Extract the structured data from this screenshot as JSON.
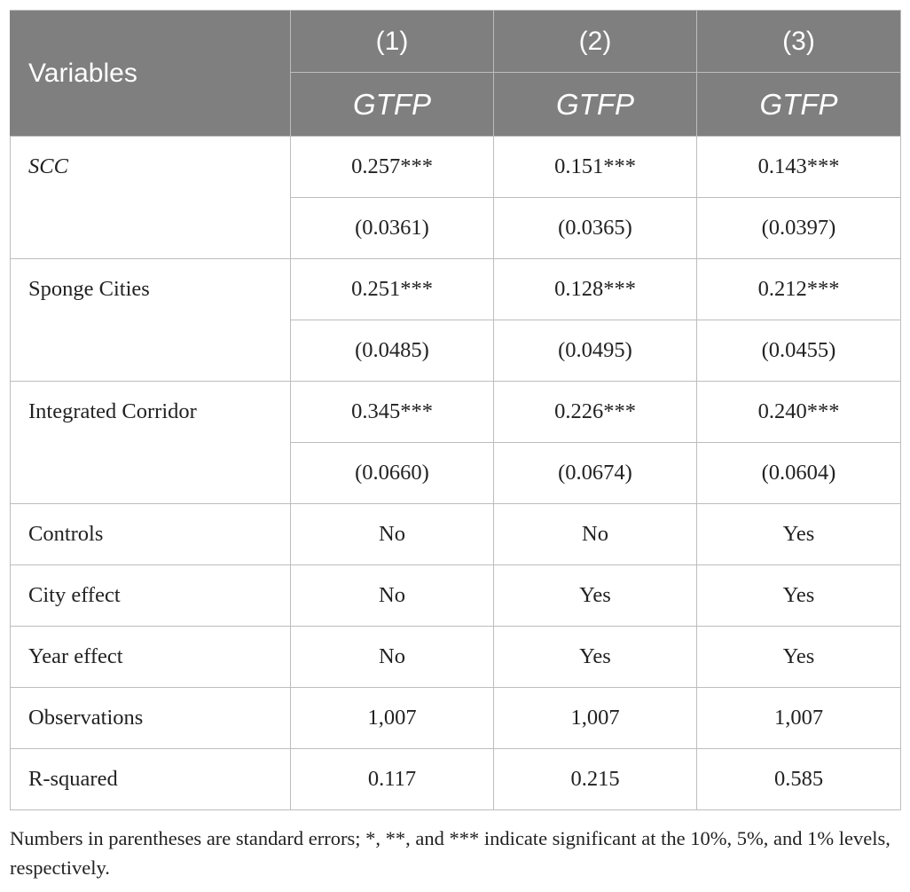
{
  "header": {
    "variables_label": "Variables",
    "columns": [
      {
        "number": "(1)",
        "dep_var": "GTFP"
      },
      {
        "number": "(2)",
        "dep_var": "GTFP"
      },
      {
        "number": "(3)",
        "dep_var": "GTFP"
      }
    ]
  },
  "coef_rows": [
    {
      "label": "SCC",
      "coefs": [
        "0.257***",
        "0.151***",
        "0.143***"
      ],
      "ses": [
        "(0.0361)",
        "(0.0365)",
        "(0.0397)"
      ]
    },
    {
      "label": "Sponge Cities",
      "coefs": [
        "0.251***",
        "0.128***",
        "0.212***"
      ],
      "ses": [
        "(0.0485)",
        "(0.0495)",
        "(0.0455)"
      ]
    },
    {
      "label": "Integrated Corridor",
      "coefs": [
        "0.345***",
        "0.226***",
        "0.240***"
      ],
      "ses": [
        "(0.0660)",
        "(0.0674)",
        "(0.0604)"
      ]
    }
  ],
  "stat_rows": [
    {
      "label": "Controls",
      "values": [
        "No",
        "No",
        "Yes"
      ]
    },
    {
      "label": "City effect",
      "values": [
        "No",
        "Yes",
        "Yes"
      ]
    },
    {
      "label": "Year effect",
      "values": [
        "No",
        "Yes",
        "Yes"
      ]
    },
    {
      "label": "Observations",
      "values": [
        "1,007",
        "1,007",
        "1,007"
      ]
    },
    {
      "label": "R-squared",
      "values": [
        "0.117",
        "0.215",
        "0.585"
      ]
    }
  ],
  "note": "Numbers in parentheses are standard errors; *, **, and *** indicate significant at the 10%, 5%, and 1% levels, respectively."
}
